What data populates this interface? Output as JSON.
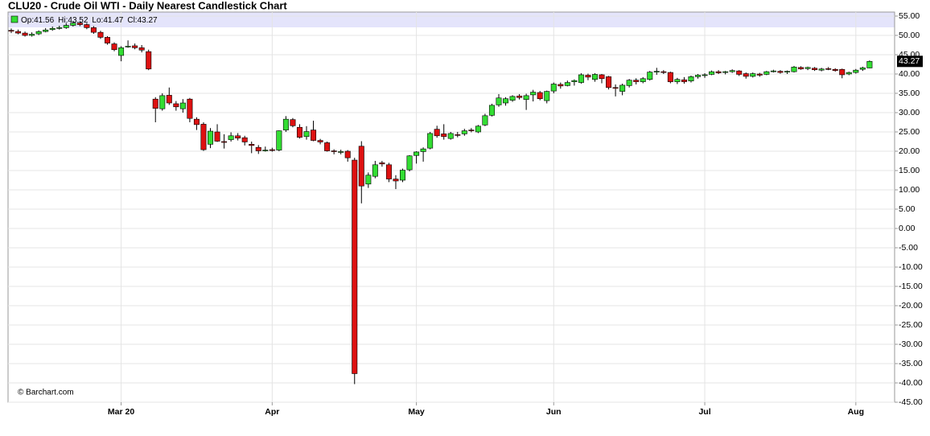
{
  "chart_data": {
    "type": "candlestick",
    "title": "CLU20 - Crude Oil WTI - Daily Nearest Candlestick Chart",
    "watermark": "© Barchart.com",
    "ohlc_prefixes": [
      "Op:",
      "Hi:",
      "Lo:",
      "Cl:"
    ],
    "up_color": "#33dd33",
    "down_color": "#dd1111",
    "grid": true,
    "ylim": [
      -45,
      55
    ],
    "yticks": [
      {
        "value": 55,
        "label": "55.00"
      },
      {
        "value": 50,
        "label": "50.00"
      },
      {
        "value": 45,
        "label": "45.00"
      },
      {
        "value": 40,
        "label": "40.00"
      },
      {
        "value": 35,
        "label": "35.00"
      },
      {
        "value": 30,
        "label": "30.00"
      },
      {
        "value": 25,
        "label": "25.00"
      },
      {
        "value": 20,
        "label": "20.00"
      },
      {
        "value": 15,
        "label": "15.00"
      },
      {
        "value": 10,
        "label": "10.00"
      },
      {
        "value": 5,
        "label": "5.00"
      },
      {
        "value": 0,
        "label": "0.00"
      },
      {
        "value": -5,
        "label": "-5.00"
      },
      {
        "value": -10,
        "label": "-10.00"
      },
      {
        "value": -15,
        "label": "-15.00"
      },
      {
        "value": -20,
        "label": "-20.00"
      },
      {
        "value": -25,
        "label": "-25.00"
      },
      {
        "value": -30,
        "label": "-30.00"
      },
      {
        "value": -35,
        "label": "-35.00"
      },
      {
        "value": -40,
        "label": "-40.00"
      },
      {
        "value": -45,
        "label": "-45.00"
      }
    ],
    "xticks": [
      {
        "value": 16,
        "label": "Mar 20"
      },
      {
        "value": 38,
        "label": "Apr"
      },
      {
        "value": 59,
        "label": "May"
      },
      {
        "value": 79,
        "label": "Jun"
      },
      {
        "value": 101,
        "label": "Jul"
      },
      {
        "value": 123,
        "label": "Aug"
      }
    ],
    "open": [
      51.3,
      51.0,
      50.6,
      50.0,
      50.4,
      51.0,
      51.5,
      51.8,
      52.0,
      52.6,
      53.2,
      52.8,
      52.0,
      50.8,
      49.5,
      47.8,
      44.8,
      47.0,
      47.3,
      46.8,
      45.8,
      33.5,
      31.0,
      34.5,
      32.3,
      31.0,
      33.5,
      28.3,
      27.0,
      21.8,
      25.0,
      22.5,
      23.0,
      24.0,
      23.5,
      21.8,
      21.0,
      20.3,
      20.4,
      20.3,
      25.5,
      28.2,
      26.2,
      23.8,
      25.5,
      22.8,
      22.2,
      20.1,
      19.8,
      20.0,
      17.7,
      21.3,
      11.5,
      13.5,
      17.0,
      16.5,
      12.8,
      12.5,
      15.2,
      18.9,
      19.9,
      20.8,
      25.7,
      24.5,
      23.3,
      24.3,
      24.5,
      25.5,
      25.0,
      26.8,
      29.3,
      32.0,
      32.5,
      33.2,
      34.3,
      33.4,
      34.6,
      35.2,
      33.1,
      35.6,
      37.3,
      37.0,
      38.0,
      37.8,
      39.7,
      38.6,
      39.8,
      39.3,
      36.5,
      35.5,
      37.0,
      38.4,
      38.0,
      38.6,
      40.5,
      40.6,
      40.4,
      38.0,
      38.5,
      38.2,
      39.3,
      39.8,
      39.9,
      40.6,
      40.4,
      40.6,
      40.8,
      40.1,
      39.4,
      40.0,
      39.9,
      40.8,
      40.7,
      40.5,
      40.6,
      41.7,
      41.4,
      41.5,
      41.0,
      41.4,
      41.2,
      41.2,
      40.0,
      40.4,
      41.2,
      41.56
    ],
    "high": [
      51.8,
      51.5,
      51.0,
      50.8,
      51.3,
      51.9,
      52.3,
      52.5,
      53.2,
      53.6,
      53.6,
      53.2,
      52.4,
      51.2,
      49.8,
      48.2,
      47.2,
      48.7,
      47.9,
      47.5,
      46.3,
      34.0,
      35.0,
      36.5,
      33.0,
      33.5,
      33.8,
      28.8,
      27.5,
      26.0,
      27.0,
      24.4,
      24.9,
      24.7,
      24.0,
      22.5,
      21.6,
      21.2,
      20.9,
      25.4,
      29.1,
      28.6,
      27.0,
      26.5,
      27.9,
      23.2,
      22.5,
      20.5,
      20.4,
      20.3,
      18.3,
      22.6,
      14.5,
      17.5,
      17.5,
      17.0,
      13.8,
      15.5,
      19.0,
      20.0,
      21.0,
      25.0,
      26.6,
      27.0,
      25.0,
      25.0,
      25.8,
      26.0,
      26.8,
      29.7,
      32.3,
      34.8,
      34.0,
      34.5,
      34.8,
      34.9,
      35.9,
      35.6,
      35.7,
      37.8,
      37.8,
      38.3,
      38.6,
      40.2,
      40.1,
      40.2,
      40.0,
      39.5,
      37.3,
      37.5,
      38.7,
      38.9,
      39.2,
      40.8,
      41.6,
      41.0,
      40.6,
      39.0,
      39.2,
      39.6,
      40.0,
      40.2,
      40.9,
      41.0,
      40.8,
      41.2,
      41.0,
      40.4,
      40.4,
      40.3,
      40.8,
      41.1,
      41.0,
      40.9,
      42.1,
      42.0,
      41.9,
      41.8,
      41.6,
      41.8,
      41.5,
      41.4,
      40.6,
      41.3,
      41.9,
      43.52
    ],
    "low": [
      50.6,
      50.3,
      49.7,
      49.7,
      50.1,
      50.8,
      51.2,
      51.5,
      51.7,
      52.3,
      52.4,
      51.6,
      50.4,
      49.1,
      47.6,
      45.9,
      43.3,
      46.8,
      46.4,
      45.6,
      41.0,
      27.5,
      30.5,
      32.0,
      30.5,
      30.0,
      27.5,
      25.5,
      20.1,
      20.8,
      22.4,
      20.7,
      22.5,
      22.8,
      21.5,
      19.5,
      19.3,
      19.9,
      19.9,
      20.0,
      25.0,
      26.2,
      23.3,
      23.0,
      22.6,
      21.8,
      19.9,
      19.2,
      19.2,
      17.3,
      -40.3,
      6.5,
      10.5,
      13.0,
      16.0,
      12.0,
      10.2,
      12.0,
      14.8,
      16.8,
      17.3,
      20.5,
      23.5,
      23.0,
      23.0,
      23.6,
      24.0,
      24.9,
      24.7,
      26.5,
      29.0,
      31.5,
      31.8,
      32.8,
      33.4,
      30.7,
      32.9,
      33.2,
      32.4,
      35.0,
      36.2,
      36.8,
      37.0,
      37.5,
      38.4,
      38.0,
      37.6,
      36.0,
      34.2,
      34.5,
      36.5,
      37.3,
      37.6,
      38.3,
      39.8,
      40.0,
      37.6,
      37.4,
      37.5,
      37.8,
      38.8,
      39.0,
      39.7,
      40.0,
      39.9,
      40.3,
      39.5,
      38.8,
      39.1,
      39.3,
      39.7,
      40.4,
      40.1,
      40.0,
      40.4,
      41.1,
      41.0,
      40.8,
      40.7,
      41.0,
      40.6,
      38.9,
      39.7,
      40.1,
      40.8,
      41.47
    ],
    "close": [
      51.1,
      50.6,
      50.0,
      50.3,
      51.0,
      51.4,
      51.8,
      52.0,
      52.6,
      53.2,
      52.8,
      52.0,
      50.8,
      49.5,
      48.0,
      46.3,
      46.8,
      47.2,
      46.8,
      46.2,
      41.3,
      31.1,
      34.4,
      32.5,
      31.5,
      32.5,
      28.5,
      26.9,
      20.4,
      25.2,
      22.6,
      22.4,
      24.0,
      23.4,
      22.4,
      21.5,
      20.1,
      20.3,
      20.3,
      25.3,
      28.3,
      26.6,
      23.6,
      25.1,
      22.8,
      22.4,
      20.1,
      19.9,
      19.9,
      18.3,
      -37.6,
      11.0,
      13.8,
      16.5,
      16.7,
      12.8,
      12.3,
      15.1,
      18.8,
      19.8,
      20.6,
      24.6,
      24.0,
      23.8,
      24.6,
      24.2,
      25.3,
      25.4,
      26.5,
      29.2,
      31.9,
      33.8,
      33.6,
      34.2,
      33.9,
      34.4,
      35.3,
      33.6,
      35.5,
      37.4,
      36.9,
      37.8,
      38.3,
      39.8,
      39.2,
      39.9,
      38.8,
      36.5,
      36.3,
      37.1,
      38.4,
      38.0,
      38.8,
      40.5,
      40.7,
      40.4,
      38.0,
      38.6,
      38.0,
      39.3,
      39.7,
      39.8,
      40.6,
      40.3,
      40.6,
      40.9,
      39.9,
      39.4,
      40.1,
      39.7,
      40.6,
      40.8,
      40.4,
      40.7,
      41.8,
      41.3,
      41.7,
      41.1,
      41.3,
      41.2,
      40.9,
      39.8,
      40.4,
      41.0,
      41.6,
      43.27
    ]
  }
}
